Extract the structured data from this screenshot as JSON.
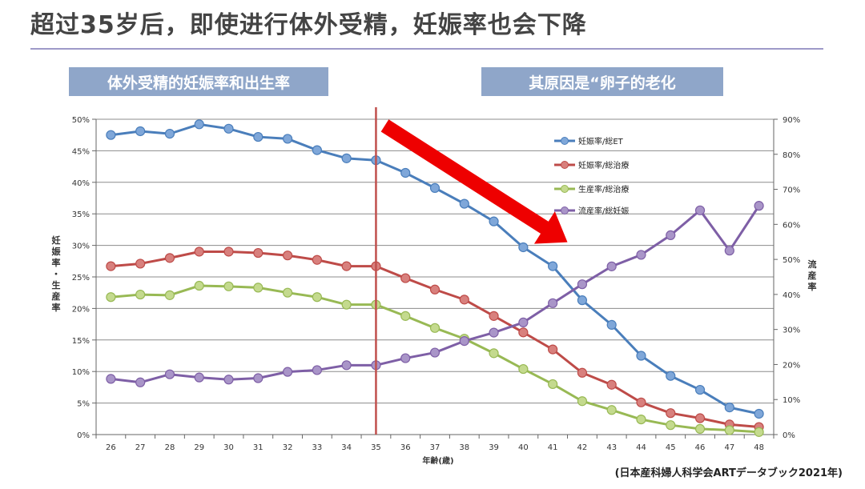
{
  "page": {
    "title": "超过35岁后，即使进行体外受精，妊娠率也会下降",
    "left_banner": "体外受精的妊娠率和出生率",
    "right_banner": "其原因是“卵子的老化",
    "source": "(日本産科婦人科学会ARTデータブック2021年)"
  },
  "chart_data": {
    "type": "line",
    "x": [
      26,
      27,
      28,
      29,
      30,
      31,
      32,
      33,
      34,
      35,
      36,
      37,
      38,
      39,
      40,
      41,
      42,
      43,
      44,
      45,
      46,
      47,
      48
    ],
    "xlabel": "年齢(歳)",
    "ylabel_left": "妊娠率・生産率",
    "ylabel_right": "流産率",
    "ylim_left": [
      0,
      50
    ],
    "ylim_right": [
      0,
      90
    ],
    "yticks_left": [
      "0%",
      "5%",
      "10%",
      "15%",
      "20%",
      "25%",
      "30%",
      "35%",
      "40%",
      "45%",
      "50%"
    ],
    "yticks_right": [
      "0%",
      "10%",
      "20%",
      "30%",
      "40%",
      "50%",
      "60%",
      "70%",
      "80%",
      "90%"
    ],
    "grid": true,
    "vertical_marker_x": 35,
    "arrow": {
      "from_age": 35.3,
      "from_value": 49.0,
      "to_age": 41.5,
      "to_value": 30.5,
      "color": "#ee0000"
    },
    "series": [
      {
        "name": "妊娠率/総ET",
        "axis": "left",
        "color": "#4a7ebb",
        "marker": "#7fa7d9",
        "values": [
          47.5,
          48.1,
          47.7,
          49.2,
          48.5,
          47.2,
          46.9,
          45.1,
          43.8,
          43.5,
          41.5,
          39.1,
          36.6,
          33.8,
          29.7,
          26.7,
          21.3,
          17.4,
          12.5,
          9.3,
          7.1,
          4.3,
          3.3
        ]
      },
      {
        "name": "妊娠率/総治療",
        "axis": "left",
        "color": "#be4b48",
        "marker": "#d8807d",
        "values": [
          26.7,
          27.1,
          28.0,
          29.0,
          29.0,
          28.8,
          28.4,
          27.7,
          26.7,
          26.7,
          24.8,
          23.0,
          21.4,
          18.8,
          16.2,
          13.5,
          9.8,
          7.9,
          5.1,
          3.4,
          2.6,
          1.6,
          1.2
        ]
      },
      {
        "name": "生産率/総治療",
        "axis": "left",
        "color": "#98b954",
        "marker": "#c4da8e",
        "values": [
          21.8,
          22.2,
          22.1,
          23.6,
          23.5,
          23.3,
          22.5,
          21.8,
          20.6,
          20.6,
          18.8,
          16.9,
          15.2,
          12.9,
          10.4,
          8.0,
          5.3,
          3.9,
          2.4,
          1.5,
          0.9,
          0.7,
          0.4
        ]
      },
      {
        "name": "流産率/総妊娠",
        "axis": "right",
        "color": "#7e5fa6",
        "marker": "#a995c8",
        "values": [
          15.9,
          14.9,
          17.2,
          16.3,
          15.7,
          16.1,
          17.9,
          18.4,
          19.8,
          19.8,
          21.8,
          23.4,
          26.7,
          29.1,
          32.0,
          37.5,
          42.9,
          48.0,
          51.3,
          56.9,
          64.0,
          52.5,
          65.3
        ]
      }
    ]
  }
}
